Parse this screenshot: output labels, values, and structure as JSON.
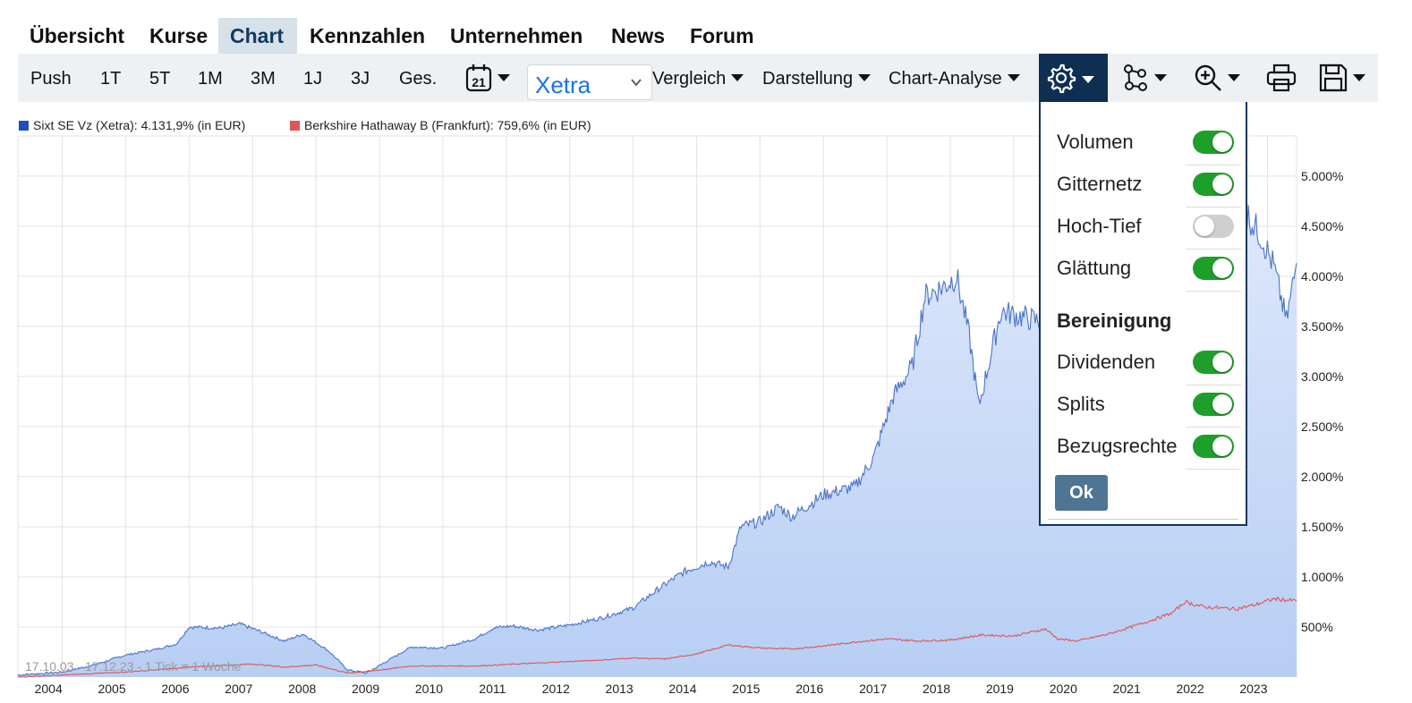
{
  "nav": {
    "items": [
      "Übersicht",
      "Kurse",
      "Chart",
      "Kennzahlen",
      "Unternehmen",
      "News",
      "Forum"
    ],
    "active": "Chart"
  },
  "toolbar": {
    "periods": [
      "Push",
      "1T",
      "5T",
      "1M",
      "3M",
      "1J",
      "3J",
      "Ges."
    ],
    "calendar_day": "21",
    "exchange": "Xetra",
    "vergleich": "Vergleich",
    "darstellung": "Darstellung",
    "chart_analyse": "Chart-Analyse",
    "icons": [
      "calendar-icon",
      "gear-icon",
      "network-icon",
      "zoom-icon",
      "printer-icon",
      "save-icon"
    ]
  },
  "settings_popup": {
    "toggles": [
      {
        "label": "Volumen",
        "on": true
      },
      {
        "label": "Gitternetz",
        "on": true
      },
      {
        "label": "Hoch-Tief",
        "on": false
      },
      {
        "label": "Glättung",
        "on": true
      }
    ],
    "section_title": "Bereinigung",
    "adjust_toggles": [
      {
        "label": "Dividenden",
        "on": true
      },
      {
        "label": "Splits",
        "on": true
      },
      {
        "label": "Bezugsrechte",
        "on": true
      }
    ],
    "ok_label": "Ok"
  },
  "chart_data": {
    "type": "area",
    "title": "",
    "legend": [
      {
        "text": "Sixt SE Vz (Xetra): 4.131,9% (in EUR)",
        "color": "#1f4fb4"
      },
      {
        "text": "Berkshire Hathaway B (Frankfurt): 759,6% (in EUR)",
        "color": "#e05555"
      }
    ],
    "period_text": "17.10.03 - 17.12.23 - 1 Tick = 1 Woche",
    "x_ticks": [
      "2004",
      "2005",
      "2006",
      "2007",
      "2008",
      "2009",
      "2010",
      "2011",
      "2012",
      "2013",
      "2014",
      "2015",
      "2016",
      "2017",
      "2018",
      "2019",
      "2020",
      "2021",
      "2022",
      "2023"
    ],
    "y_ticks": [
      "500%",
      "1.000%",
      "1.500%",
      "2.000%",
      "2.500%",
      "3.000%",
      "3.500%",
      "4.000%",
      "4.500%",
      "5.000%"
    ],
    "y_range": [
      0,
      5400
    ],
    "x_range": [
      2003.8,
      2023.96
    ],
    "grid": true,
    "series": [
      {
        "name": "Sixt SE Vz (Xetra)",
        "color": "#4a72c8",
        "fill": true,
        "x": [
          2003.8,
          2004.5,
          2005.0,
          2005.5,
          2006.0,
          2006.3,
          2006.5,
          2007.0,
          2007.3,
          2007.6,
          2008.0,
          2008.3,
          2008.7,
          2009.0,
          2009.3,
          2009.7,
          2010.0,
          2010.5,
          2011.0,
          2011.3,
          2011.6,
          2012.0,
          2012.5,
          2013.0,
          2013.5,
          2013.9,
          2014.3,
          2014.7,
          2015.0,
          2015.2,
          2015.5,
          2015.8,
          2016.0,
          2016.5,
          2017.0,
          2017.3,
          2017.6,
          2017.9,
          2018.1,
          2018.4,
          2018.6,
          2018.8,
          2018.95,
          2019.3,
          2019.6,
          2019.9,
          2020.2,
          2020.5,
          2020.8,
          2021.0,
          2021.3,
          2021.6,
          2022.0,
          2022.3,
          2022.6,
          2023.0,
          2023.2,
          2023.4,
          2023.6,
          2023.8,
          2023.96
        ],
        "values": [
          20,
          50,
          120,
          220,
          280,
          330,
          500,
          490,
          530,
          460,
          360,
          430,
          260,
          70,
          40,
          190,
          300,
          290,
          380,
          490,
          510,
          470,
          520,
          590,
          690,
          880,
          1050,
          1150,
          1100,
          1500,
          1550,
          1700,
          1600,
          1820,
          1900,
          2200,
          2800,
          3100,
          3800,
          3900,
          4000,
          3400,
          2700,
          3650,
          3600,
          3550,
          2600,
          2800,
          3400,
          3300,
          3700,
          3850,
          4000,
          4300,
          4050,
          4400,
          4600,
          4400,
          4100,
          3550,
          4131.9
        ]
      },
      {
        "name": "Berkshire Hathaway B (Frankfurt)",
        "color": "#e05555",
        "fill": false,
        "x": [
          2003.8,
          2004.5,
          2005.5,
          2006.5,
          2007.5,
          2008.0,
          2008.5,
          2009.0,
          2009.5,
          2010.0,
          2011.0,
          2012.0,
          2013.0,
          2013.5,
          2014.0,
          2014.5,
          2015.0,
          2015.5,
          2016.0,
          2016.5,
          2017.0,
          2017.5,
          2018.0,
          2018.5,
          2019.0,
          2019.5,
          2020.0,
          2020.2,
          2020.5,
          2021.0,
          2021.5,
          2022.0,
          2022.2,
          2022.5,
          2023.0,
          2023.3,
          2023.6,
          2023.96
        ],
        "values": [
          0,
          20,
          50,
          100,
          130,
          100,
          120,
          40,
          70,
          110,
          110,
          140,
          170,
          190,
          180,
          230,
          320,
          290,
          280,
          310,
          350,
          380,
          360,
          370,
          420,
          410,
          480,
          380,
          360,
          430,
          530,
          640,
          750,
          700,
          680,
          720,
          780,
          759.6
        ]
      }
    ]
  }
}
